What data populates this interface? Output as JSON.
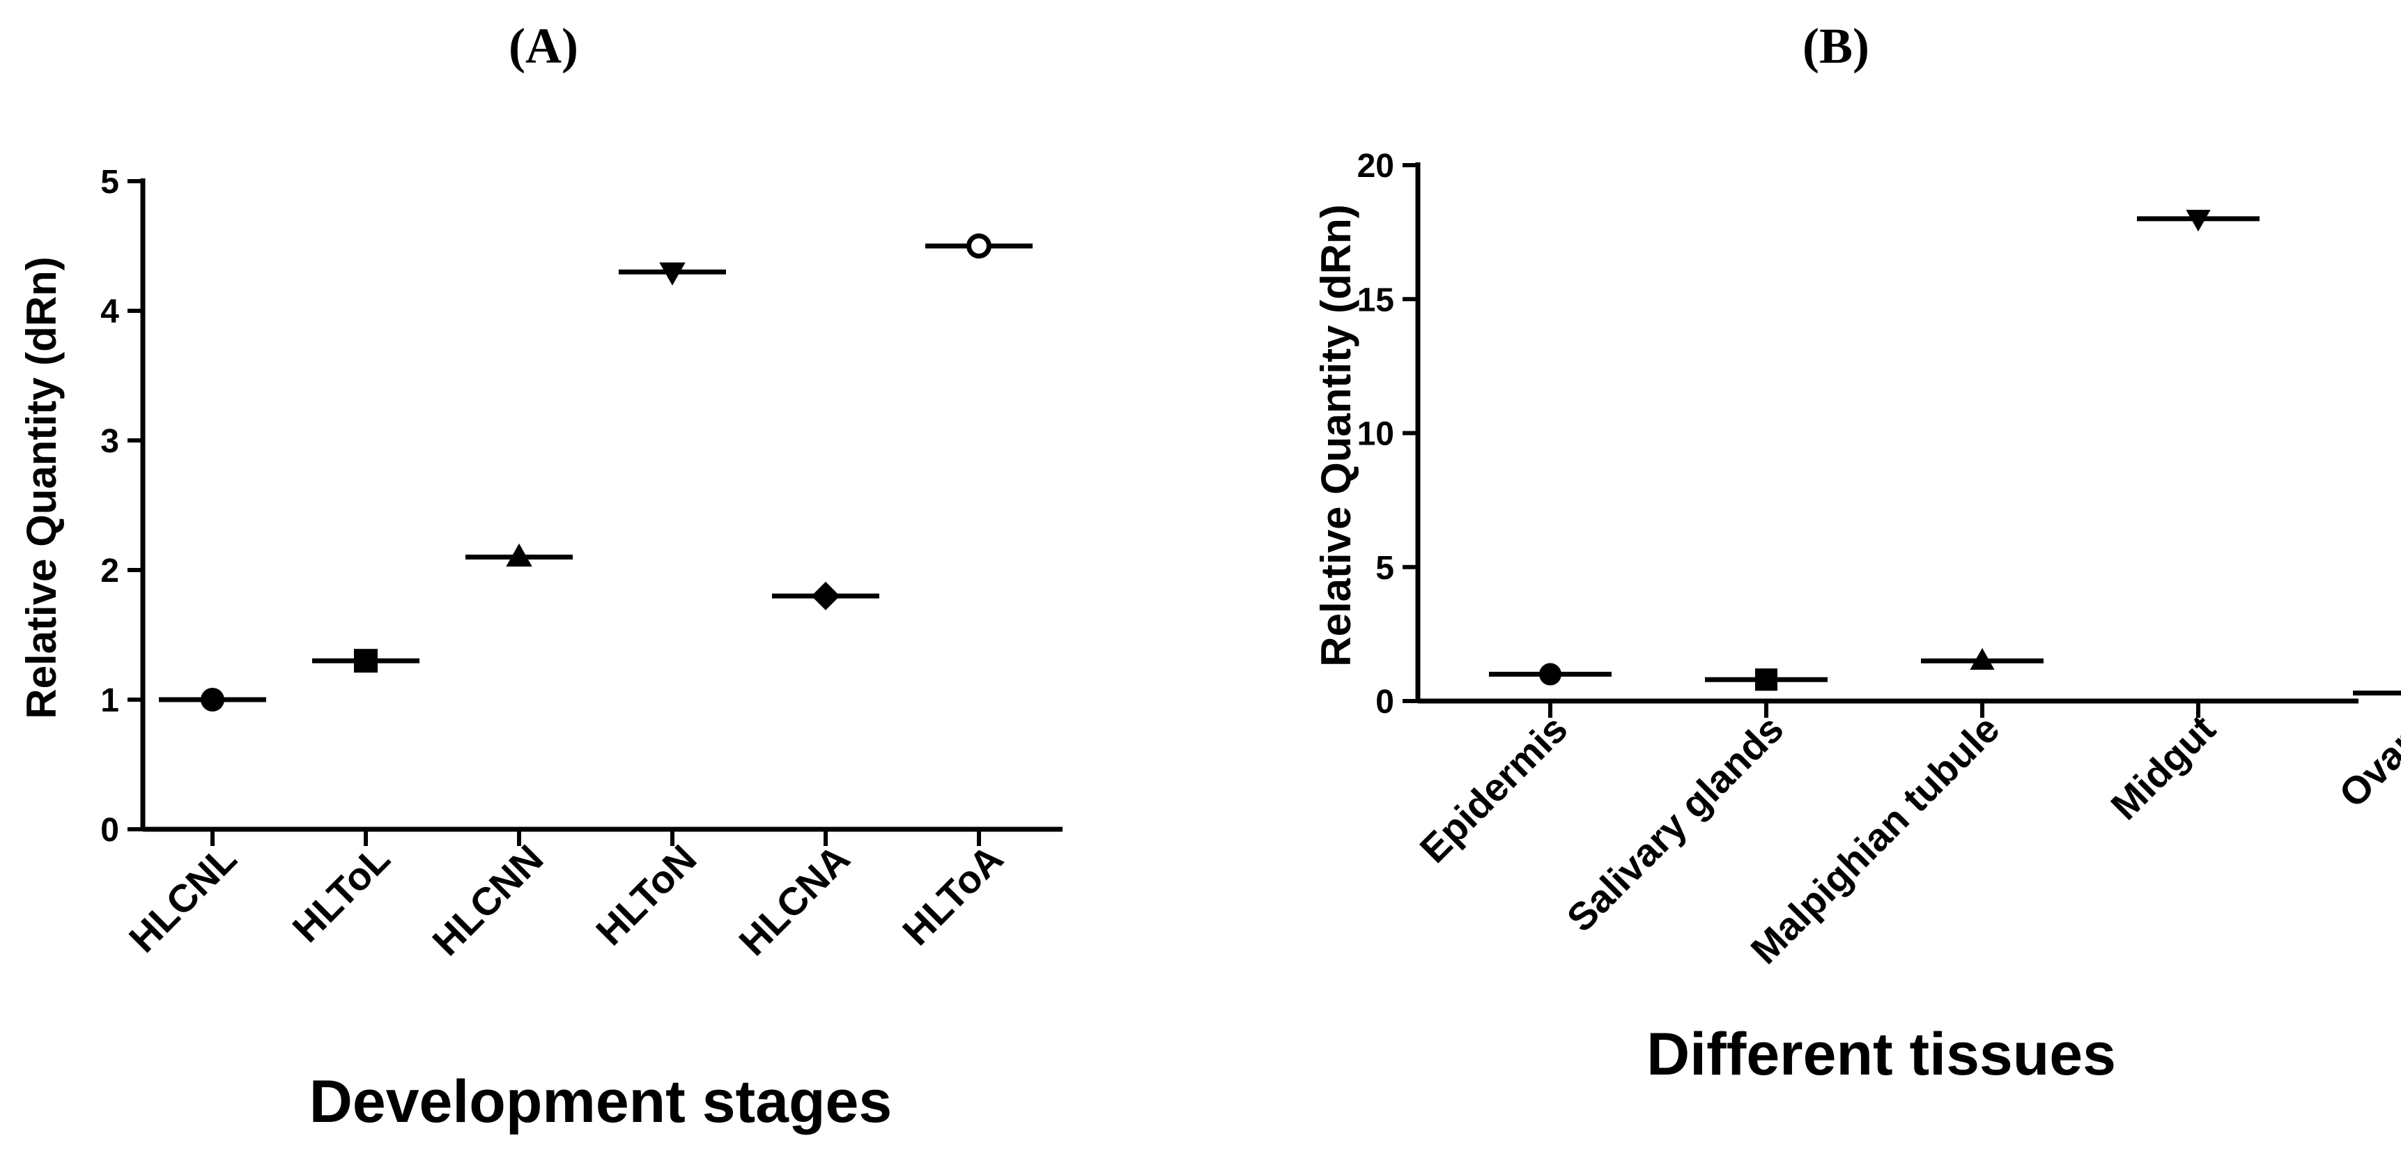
{
  "chart_data": [
    {
      "type": "scatter",
      "panel_label": "(A)",
      "title": "",
      "xlabel": "Development stages",
      "ylabel": "Relative Quantity (dRn)",
      "categories": [
        "HLCNL",
        "HLToL",
        "HLCNN",
        "HLToN",
        "HLCNA",
        "HLToA"
      ],
      "values": [
        1.0,
        1.3,
        2.1,
        4.3,
        1.8,
        4.5
      ],
      "markers": [
        "circle",
        "square",
        "triangle-up",
        "triangle-down",
        "diamond",
        "open-circle"
      ],
      "ylim": [
        0,
        5
      ],
      "yticks": [
        0,
        1,
        2,
        3,
        4,
        5
      ],
      "ytick_labels": [
        "0",
        "1",
        "2",
        "3",
        "4",
        "5"
      ],
      "grid": false,
      "legend": "none"
    },
    {
      "type": "scatter",
      "panel_label": "(B)",
      "title": "",
      "xlabel": "Different tissues",
      "ylabel": "Relative Quantity (dRn)",
      "categories": [
        "Epidermis",
        "Salivary glands",
        "Malpighian tubule",
        "Midgut",
        "Ovary"
      ],
      "values": [
        1.0,
        0.8,
        1.5,
        18.0,
        0.3
      ],
      "markers": [
        "circle",
        "square",
        "triangle-up",
        "triangle-down",
        "diamond"
      ],
      "ylim": [
        0,
        20
      ],
      "yticks": [
        0,
        5,
        10,
        15,
        20
      ],
      "ytick_labels": [
        "0",
        "5",
        "10",
        "15",
        "20"
      ],
      "grid": false,
      "legend": "none"
    }
  ]
}
